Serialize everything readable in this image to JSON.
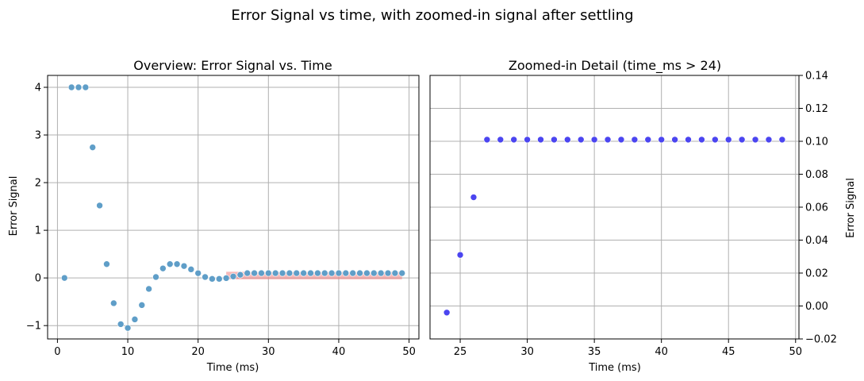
{
  "figure": {
    "title": "Error Signal vs time, with zoomed-in signal after settling"
  },
  "chart_data": [
    {
      "type": "scatter",
      "title": "Overview: Error Signal vs. Time",
      "xlabel": "Time (ms)",
      "ylabel": "Error Signal",
      "xlim": [
        -1.4,
        51.4
      ],
      "ylim": [
        -1.28,
        4.25
      ],
      "xticks": [
        0,
        10,
        20,
        30,
        40,
        50
      ],
      "yticks": [
        -1,
        0,
        1,
        2,
        3,
        4
      ],
      "grid": true,
      "point_color": "#5f9ec8",
      "highlight_color": "#f08080",
      "highlight_region": {
        "x": [
          24,
          49
        ],
        "y": [
          -0.03,
          0.13
        ]
      },
      "x": [
        1,
        2,
        3,
        4,
        5,
        6,
        7,
        8,
        9,
        10,
        11,
        12,
        13,
        14,
        15,
        16,
        17,
        18,
        19,
        20,
        21,
        22,
        23,
        24,
        25,
        26,
        27,
        28,
        29,
        30,
        31,
        32,
        33,
        34,
        35,
        36,
        37,
        38,
        39,
        40,
        41,
        42,
        43,
        44,
        45,
        46,
        47,
        48,
        49
      ],
      "y": [
        0,
        4,
        4,
        4,
        2.74,
        1.52,
        0.29,
        -0.53,
        -0.97,
        -1.05,
        -0.87,
        -0.57,
        -0.23,
        0.02,
        0.2,
        0.29,
        0.29,
        0.25,
        0.18,
        0.1,
        0.02,
        -0.02,
        -0.02,
        -0.004,
        0.031,
        0.066,
        0.101,
        0.101,
        0.101,
        0.101,
        0.101,
        0.101,
        0.101,
        0.101,
        0.101,
        0.101,
        0.101,
        0.101,
        0.101,
        0.101,
        0.101,
        0.101,
        0.101,
        0.101,
        0.101,
        0.101,
        0.101,
        0.101,
        0.101
      ]
    },
    {
      "type": "scatter",
      "title": "Zoomed-in Detail (time_ms > 24)",
      "xlabel": "Time (ms)",
      "ylabel": "Error Signal",
      "ylabel_side": "right",
      "xlim": [
        22.75,
        50.25
      ],
      "ylim": [
        -0.02,
        0.14
      ],
      "xticks": [
        25,
        30,
        35,
        40,
        45,
        50
      ],
      "yticks": [
        "-0.02",
        "0.00",
        "0.02",
        "0.04",
        "0.06",
        "0.08",
        "0.10",
        "0.12",
        "0.14"
      ],
      "grid": true,
      "point_color": "#4b45f0",
      "x": [
        24,
        25,
        26,
        27,
        28,
        29,
        30,
        31,
        32,
        33,
        34,
        35,
        36,
        37,
        38,
        39,
        40,
        41,
        42,
        43,
        44,
        45,
        46,
        47,
        48,
        49
      ],
      "y": [
        -0.004,
        0.031,
        0.066,
        0.101,
        0.101,
        0.101,
        0.101,
        0.101,
        0.101,
        0.101,
        0.101,
        0.101,
        0.101,
        0.101,
        0.101,
        0.101,
        0.101,
        0.101,
        0.101,
        0.101,
        0.101,
        0.101,
        0.101,
        0.101,
        0.101,
        0.101
      ]
    }
  ]
}
